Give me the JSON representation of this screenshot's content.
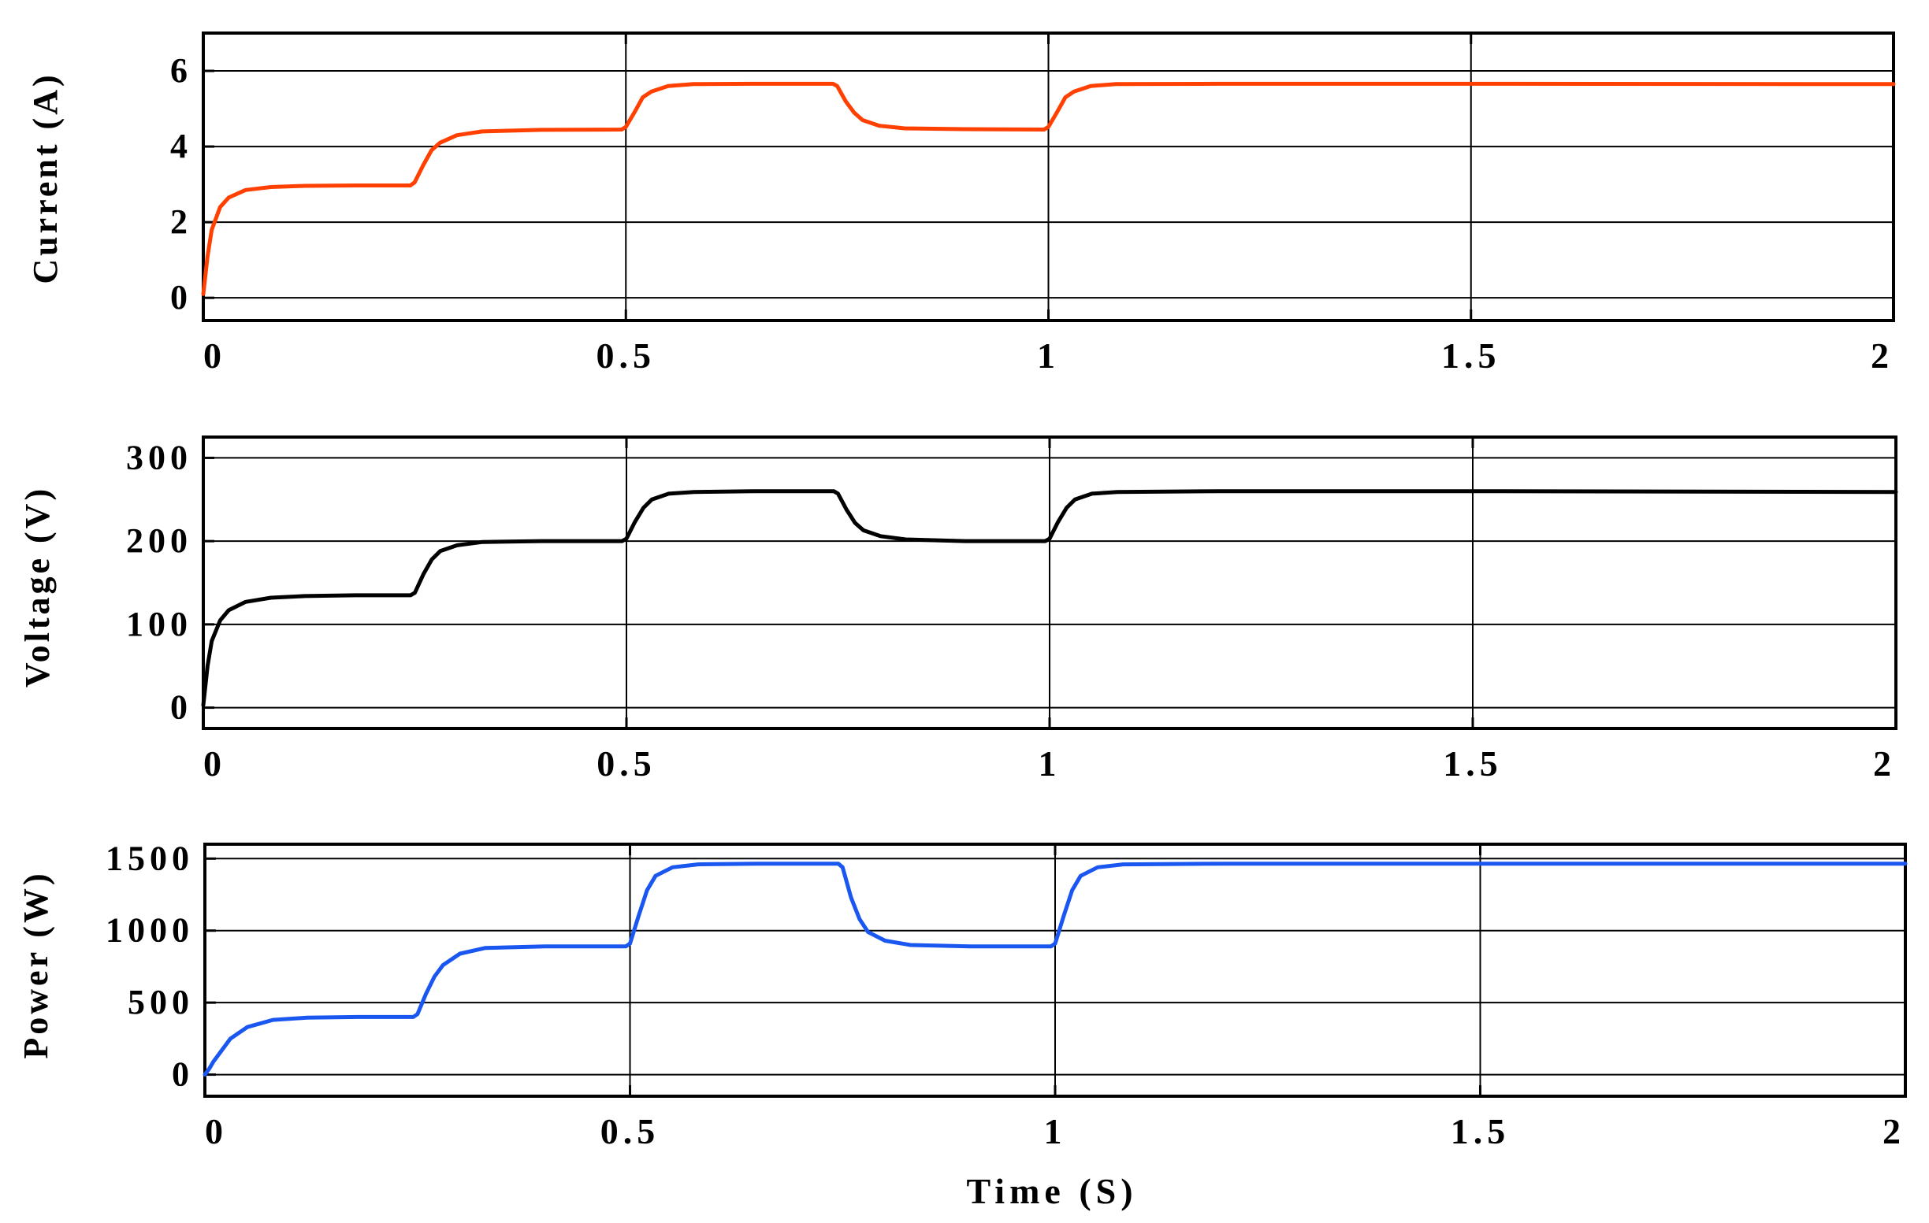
{
  "chart_data": [
    {
      "type": "line",
      "ylabel": "Current (A)",
      "xlabel": "",
      "xlim": [
        0,
        2
      ],
      "ylim": [
        -0.6,
        7.0
      ],
      "xticks": [
        0,
        0.5,
        1,
        1.5,
        2
      ],
      "xtick_labels": [
        "0",
        "0.5",
        "1",
        "1.5",
        "2"
      ],
      "yticks": [
        0,
        2,
        4,
        6
      ],
      "ytick_labels": [
        "0",
        "2",
        "4",
        "6"
      ],
      "grid": true,
      "series": [
        {
          "color": "#ff4000",
          "x": [
            0,
            0.005,
            0.01,
            0.02,
            0.03,
            0.05,
            0.08,
            0.12,
            0.18,
            0.245,
            0.25,
            0.26,
            0.27,
            0.28,
            0.3,
            0.33,
            0.4,
            0.495,
            0.5,
            0.51,
            0.52,
            0.53,
            0.55,
            0.58,
            0.65,
            0.745,
            0.75,
            0.76,
            0.77,
            0.78,
            0.8,
            0.83,
            0.9,
            0.995,
            1.0,
            1.01,
            1.02,
            1.03,
            1.05,
            1.08,
            1.2,
            1.5,
            2.0
          ],
          "y": [
            0.1,
            1.1,
            1.8,
            2.4,
            2.65,
            2.85,
            2.93,
            2.96,
            2.97,
            2.97,
            3.05,
            3.5,
            3.9,
            4.1,
            4.3,
            4.4,
            4.44,
            4.45,
            4.52,
            4.9,
            5.3,
            5.45,
            5.6,
            5.65,
            5.66,
            5.66,
            5.6,
            5.2,
            4.9,
            4.7,
            4.55,
            4.48,
            4.46,
            4.45,
            4.52,
            4.9,
            5.3,
            5.45,
            5.6,
            5.65,
            5.66,
            5.66,
            5.65
          ]
        }
      ]
    },
    {
      "type": "line",
      "ylabel": "Voltage (V)",
      "xlabel": "",
      "xlim": [
        0,
        2
      ],
      "ylim": [
        -25,
        325
      ],
      "xticks": [
        0,
        0.5,
        1,
        1.5,
        2
      ],
      "xtick_labels": [
        "0",
        "0.5",
        "1",
        "1.5",
        "2"
      ],
      "yticks": [
        0,
        100,
        200,
        300
      ],
      "ytick_labels": [
        "0",
        "100",
        "200",
        "300"
      ],
      "grid": true,
      "series": [
        {
          "color": "#000000",
          "x": [
            0,
            0.005,
            0.01,
            0.02,
            0.03,
            0.05,
            0.08,
            0.12,
            0.18,
            0.245,
            0.25,
            0.26,
            0.27,
            0.28,
            0.3,
            0.33,
            0.4,
            0.495,
            0.5,
            0.51,
            0.52,
            0.53,
            0.55,
            0.58,
            0.65,
            0.745,
            0.75,
            0.76,
            0.77,
            0.78,
            0.8,
            0.83,
            0.9,
            0.995,
            1.0,
            1.01,
            1.02,
            1.03,
            1.05,
            1.08,
            1.2,
            1.5,
            2.0
          ],
          "y": [
            3,
            50,
            80,
            105,
            117,
            127,
            132,
            134,
            135,
            135,
            138,
            160,
            178,
            188,
            195,
            199,
            200,
            200,
            203,
            223,
            240,
            250,
            257,
            259,
            260,
            260,
            257,
            238,
            222,
            213,
            206,
            202,
            200,
            200,
            203,
            223,
            240,
            250,
            257,
            259,
            260,
            260,
            259
          ]
        }
      ]
    },
    {
      "type": "line",
      "ylabel": "Power (W)",
      "xlabel": "Time (S)",
      "xlim": [
        0,
        2
      ],
      "ylim": [
        -150,
        1600
      ],
      "xticks": [
        0,
        0.5,
        1,
        1.5,
        2
      ],
      "xtick_labels": [
        "0",
        "0.5",
        "1",
        "1.5",
        "2"
      ],
      "yticks": [
        0,
        500,
        1000,
        1500
      ],
      "ytick_labels": [
        "0",
        "500",
        "1000",
        "1500"
      ],
      "grid": true,
      "series": [
        {
          "color": "#1a56f0",
          "x": [
            0,
            0.005,
            0.01,
            0.02,
            0.03,
            0.05,
            0.08,
            0.12,
            0.18,
            0.245,
            0.25,
            0.26,
            0.27,
            0.28,
            0.3,
            0.33,
            0.4,
            0.495,
            0.5,
            0.51,
            0.52,
            0.53,
            0.55,
            0.58,
            0.65,
            0.745,
            0.75,
            0.76,
            0.77,
            0.78,
            0.8,
            0.83,
            0.9,
            0.995,
            1.0,
            1.01,
            1.02,
            1.03,
            1.05,
            1.08,
            1.2,
            1.5,
            2.0
          ],
          "y": [
            0,
            40,
            90,
            170,
            250,
            330,
            380,
            395,
            400,
            400,
            420,
            560,
            680,
            760,
            840,
            880,
            890,
            890,
            910,
            1100,
            1280,
            1380,
            1440,
            1460,
            1465,
            1465,
            1440,
            1230,
            1080,
            990,
            930,
            900,
            890,
            890,
            910,
            1100,
            1280,
            1380,
            1440,
            1460,
            1465,
            1465,
            1465
          ]
        }
      ]
    }
  ]
}
